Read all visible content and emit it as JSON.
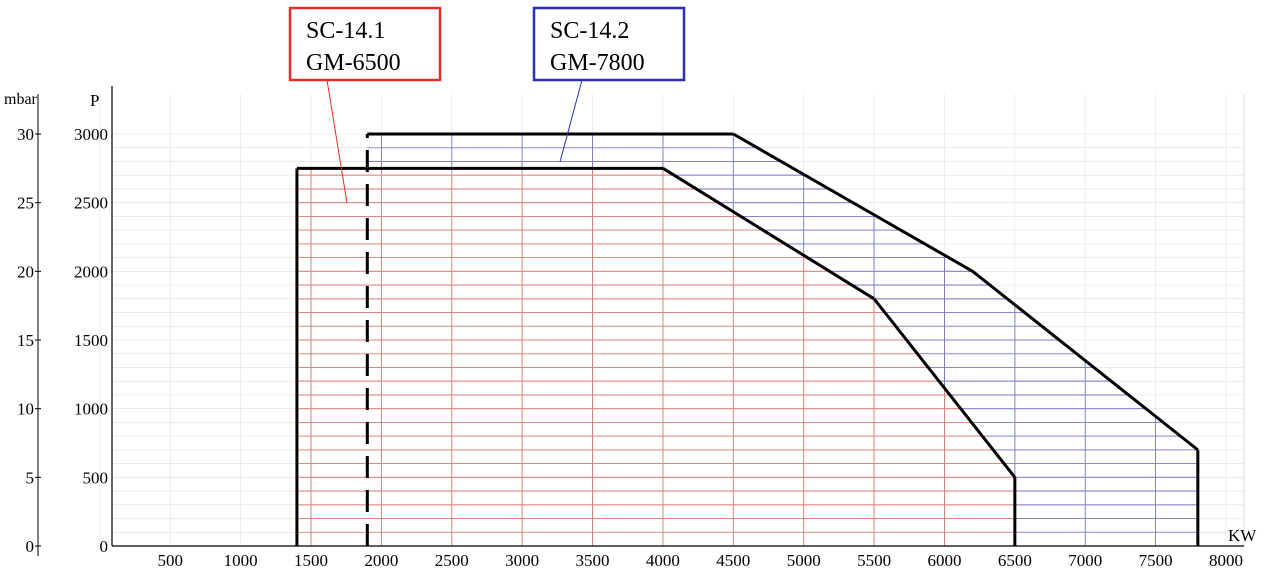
{
  "chart_data": {
    "type": "area",
    "title": "",
    "x_unit": "KW",
    "y_unit_left": "mbar",
    "y_unit_right": "P",
    "xlim": [
      0,
      8000
    ],
    "ylim": [
      0,
      3000
    ],
    "x_ticks": [
      {
        "value": 500,
        "label": "500"
      },
      {
        "value": 1000,
        "label": "1000"
      },
      {
        "value": 1500,
        "label": "1500"
      },
      {
        "value": 2000,
        "label": "2000"
      },
      {
        "value": 2500,
        "label": "2500"
      },
      {
        "value": 3000,
        "label": "3000"
      },
      {
        "value": 3500,
        "label": "3500"
      },
      {
        "value": 4000,
        "label": "4000"
      },
      {
        "value": 4500,
        "label": "4500"
      },
      {
        "value": 5000,
        "label": "5000"
      },
      {
        "value": 5500,
        "label": "5500"
      },
      {
        "value": 6000,
        "label": "6000"
      },
      {
        "value": 6500,
        "label": "6500"
      },
      {
        "value": 7000,
        "label": "7000"
      },
      {
        "value": 7500,
        "label": "7500"
      },
      {
        "value": 8000,
        "label": "8000"
      }
    ],
    "y_ticks": [
      {
        "value": 0,
        "mbar": "0",
        "p": "0"
      },
      {
        "value": 500,
        "mbar": "5",
        "p": "500"
      },
      {
        "value": 1000,
        "mbar": "10",
        "p": "1000"
      },
      {
        "value": 1500,
        "mbar": "15",
        "p": "1500"
      },
      {
        "value": 2000,
        "mbar": "20",
        "p": "2000"
      },
      {
        "value": 2500,
        "mbar": "25",
        "p": "2500"
      },
      {
        "value": 3000,
        "mbar": "30",
        "p": "3000"
      }
    ],
    "grid": true,
    "series": [
      {
        "name": "SC-14.1 GM-6500",
        "label_lines": [
          "SC-14.1",
          "GM-6500"
        ],
        "color": "#e0302c",
        "points": [
          [
            1400,
            0
          ],
          [
            1400,
            2750
          ],
          [
            4000,
            2750
          ],
          [
            5500,
            1800
          ],
          [
            6500,
            500
          ],
          [
            6500,
            0
          ]
        ]
      },
      {
        "name": "SC-14.2 GM-7800",
        "label_lines": [
          "SC-14.2",
          "GM-7800"
        ],
        "color": "#2a2fb8",
        "dashed_min_x": 1900,
        "points": [
          [
            1900,
            0
          ],
          [
            1900,
            3000
          ],
          [
            4500,
            3000
          ],
          [
            6200,
            2000
          ],
          [
            7800,
            700
          ],
          [
            7800,
            0
          ]
        ]
      }
    ]
  }
}
